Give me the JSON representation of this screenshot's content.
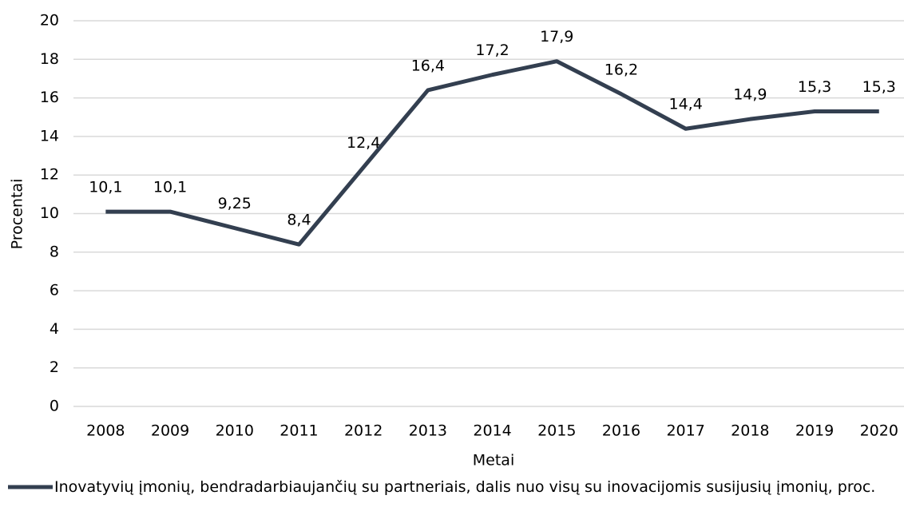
{
  "chart_data": {
    "type": "line",
    "xlabel": "Metai",
    "ylabel": "Procentai",
    "categories": [
      "2008",
      "2009",
      "2010",
      "2011",
      "2012",
      "2013",
      "2014",
      "2015",
      "2016",
      "2017",
      "2018",
      "2019",
      "2020"
    ],
    "series": [
      {
        "name": "Inovatyvių įmonių, bendradarbiaujančių su partneriais, dalis nuo visų su inovacijomis susijusių įmonių, proc.",
        "color": "#333f50",
        "values": [
          10.1,
          10.1,
          9.25,
          8.4,
          12.4,
          16.4,
          17.2,
          17.9,
          16.2,
          14.4,
          14.9,
          15.3,
          15.3
        ],
        "value_labels": [
          "10,1",
          "10,1",
          "9,25",
          "8,4",
          "12,4",
          "16,4",
          "17,2",
          "17,9",
          "16,2",
          "14,4",
          "14,9",
          "15,3",
          "15,3"
        ]
      }
    ],
    "ylim": [
      0,
      20
    ],
    "yticks": [
      0,
      2,
      4,
      6,
      8,
      10,
      12,
      14,
      16,
      18,
      20
    ],
    "grid": true,
    "legend": "bottom"
  }
}
